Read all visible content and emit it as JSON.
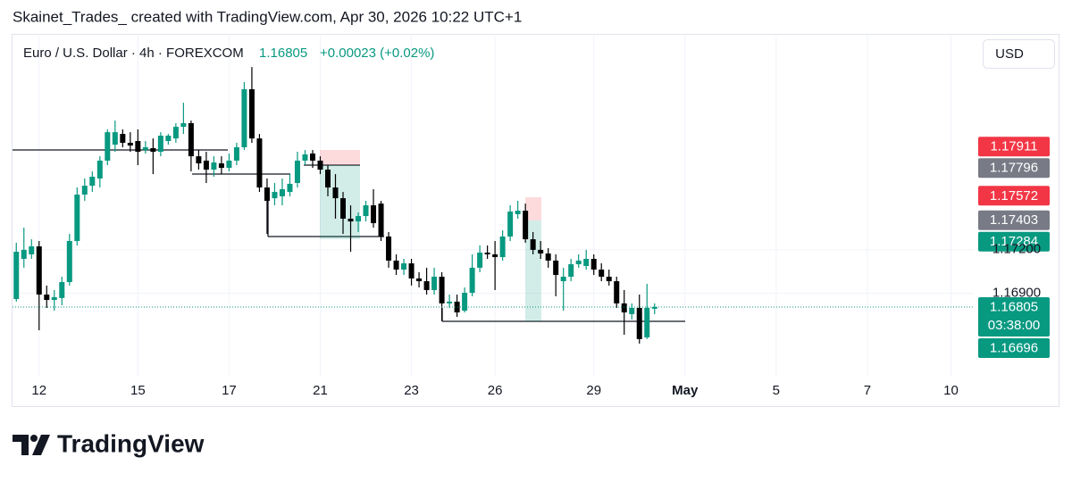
{
  "header": {
    "caption": "Skainet_Trades_ created with TradingView.com, Apr 30, 2026 10:22 UTC+1"
  },
  "chart_data": {
    "type": "candlestick",
    "title": "Euro / U.S. Dollar · 4h · FOREXCOM",
    "last_price": 1.16805,
    "change_text": "+0.00023 (+0.02%)",
    "currency": "USD",
    "countdown": "03:38:00",
    "up_color": "#089981",
    "down_color": "#000000",
    "grid": true,
    "candles": {
      "open": [
        1.1686,
        1.17137,
        1.17168,
        1.17223,
        1.16891,
        1.16854,
        1.16867,
        1.16977,
        1.1726,
        1.1758,
        1.17641,
        1.17691,
        1.17814,
        1.17924,
        1.17998,
        1.17937,
        1.17949,
        1.17887,
        1.179,
        1.17875,
        1.17949,
        1.17967,
        1.18047,
        1.18072,
        1.17844,
        1.17814,
        1.17752,
        1.17795,
        1.17764,
        1.17814,
        1.17906,
        1.18306,
        1.17967,
        1.17629,
        1.17555,
        1.17568,
        1.17598,
        1.1766,
        1.17814,
        1.17863,
        1.17814,
        1.17752,
        1.17629,
        1.17555,
        1.17414,
        1.17395,
        1.17432,
        1.17506,
        1.17518,
        1.17291,
        1.17125,
        1.17063,
        1.17106,
        1.17002,
        1.16983,
        1.16922,
        1.17014,
        1.1683,
        1.16842,
        1.1678,
        1.16903,
        1.17076,
        1.1718,
        1.17168,
        1.17149,
        1.17291,
        1.17445,
        1.17469,
        1.17272,
        1.17199,
        1.17174,
        1.17125,
        1.16983,
        1.17014,
        1.171,
        1.17088,
        1.17137,
        1.17063,
        1.17014,
        1.16983,
        1.1683,
        1.16756,
        1.16799,
        1.16596,
        1.16793
      ],
      "high": [
        1.17248,
        1.17352,
        1.17272,
        1.1726,
        1.16953,
        1.16922,
        1.17014,
        1.17309,
        1.17629,
        1.17691,
        1.1774,
        1.17844,
        1.18029,
        1.1809,
        1.18029,
        1.1801,
        1.18029,
        1.17949,
        1.17967,
        1.1801,
        1.17998,
        1.18072,
        1.18213,
        1.1809,
        1.17887,
        1.17875,
        1.17844,
        1.17844,
        1.17863,
        1.17937,
        1.18355,
        1.18459,
        1.17998,
        1.17691,
        1.1766,
        1.17691,
        1.17721,
        1.17875,
        1.17887,
        1.17887,
        1.17844,
        1.17783,
        1.17721,
        1.17598,
        1.17506,
        1.17457,
        1.17537,
        1.17617,
        1.17537,
        1.17322,
        1.17168,
        1.17137,
        1.17137,
        1.17045,
        1.17076,
        1.17076,
        1.17045,
        1.16891,
        1.16891,
        1.1694,
        1.17168,
        1.17229,
        1.17229,
        1.1726,
        1.17334,
        1.17506,
        1.17537,
        1.17518,
        1.17322,
        1.1726,
        1.17211,
        1.17168,
        1.17076,
        1.17137,
        1.17168,
        1.17199,
        1.17168,
        1.17106,
        1.17063,
        1.17014,
        1.16922,
        1.1683,
        1.16891,
        1.16965,
        1.1683
      ],
      "low": [
        1.16842,
        1.17076,
        1.17137,
        1.16645,
        1.16799,
        1.1678,
        1.16817,
        1.16953,
        1.17229,
        1.17537,
        1.17598,
        1.17629,
        1.17783,
        1.17875,
        1.17906,
        1.17875,
        1.17783,
        1.17863,
        1.17721,
        1.17844,
        1.17924,
        1.17937,
        1.17998,
        1.1774,
        1.17752,
        1.1766,
        1.17703,
        1.17721,
        1.1774,
        1.17783,
        1.17887,
        1.17937,
        1.17598,
        1.17309,
        1.17506,
        1.17506,
        1.17568,
        1.17629,
        1.17783,
        1.17764,
        1.17721,
        1.17568,
        1.17414,
        1.17309,
        1.17186,
        1.17322,
        1.17395,
        1.17352,
        1.1726,
        1.17076,
        1.17026,
        1.17026,
        1.16953,
        1.1694,
        1.16891,
        1.16891,
        1.16707,
        1.16799,
        1.16737,
        1.16768,
        1.16879,
        1.17045,
        1.17137,
        1.16922,
        1.17125,
        1.1726,
        1.17414,
        1.17248,
        1.17168,
        1.17137,
        1.17076,
        1.16879,
        1.1678,
        1.16983,
        1.17076,
        1.17063,
        1.17026,
        1.16983,
        1.16953,
        1.16799,
        1.16614,
        1.16719,
        1.16553,
        1.16584,
        1.16756
      ],
      "close": [
        1.17186,
        1.17199,
        1.17223,
        1.16891,
        1.16854,
        1.16873,
        1.16977,
        1.1726,
        1.1758,
        1.17641,
        1.17703,
        1.17814,
        1.1801,
        1.1801,
        1.17937,
        1.17918,
        1.17875,
        1.17906,
        1.17875,
        1.17986,
        1.17986,
        1.18047,
        1.18072,
        1.17844,
        1.17795,
        1.17752,
        1.17801,
        1.17764,
        1.17814,
        1.17906,
        1.18306,
        1.17967,
        1.17629,
        1.17537,
        1.17598,
        1.17617,
        1.17654,
        1.17814,
        1.17857,
        1.17814,
        1.17752,
        1.17629,
        1.17555,
        1.17414,
        1.17395,
        1.17432,
        1.17506,
        1.17383,
        1.17291,
        1.17125,
        1.17063,
        1.17106,
        1.17002,
        1.16983,
        1.16922,
        1.17014,
        1.1683,
        1.16842,
        1.16768,
        1.16903,
        1.17076,
        1.1718,
        1.17168,
        1.17149,
        1.17291,
        1.17463,
        1.17469,
        1.17272,
        1.17199,
        1.17174,
        1.17125,
        1.17026,
        1.17014,
        1.171,
        1.17125,
        1.17137,
        1.17063,
        1.17014,
        1.16983,
        1.1683,
        1.16768,
        1.16799,
        1.16584,
        1.16799,
        1.16805
      ]
    },
    "xlim": [
      -0.5,
      126
    ],
    "xticks": [
      {
        "value": 3,
        "label": "12"
      },
      {
        "value": 16,
        "label": "15"
      },
      {
        "value": 28,
        "label": "17"
      },
      {
        "value": 40,
        "label": "21"
      },
      {
        "value": 52,
        "label": "23"
      },
      {
        "value": 63,
        "label": "26"
      },
      {
        "value": 76,
        "label": "29"
      },
      {
        "value": 88,
        "label": "May",
        "bold": true
      },
      {
        "value": 100,
        "label": "5"
      },
      {
        "value": 112,
        "label": "7"
      },
      {
        "value": 123,
        "label": "10"
      }
    ],
    "ylim": [
      1.16325,
      1.18675
    ],
    "yticks": [
      {
        "value": 1.169,
        "label": "1.16900"
      },
      {
        "value": 1.172,
        "label": "1.17200"
      }
    ],
    "price_tags": [
      {
        "value": 1.17911,
        "color": "#f23645"
      },
      {
        "value": 1.17796,
        "color": "#787b86"
      },
      {
        "value": 1.17572,
        "color": "#f23645"
      },
      {
        "value": 1.17403,
        "color": "#787b86"
      },
      {
        "value": 1.17284,
        "color": "#089981"
      },
      {
        "value": 1.16696,
        "color": "#089981"
      }
    ]
  },
  "footer": {
    "logo": "TradingView"
  }
}
